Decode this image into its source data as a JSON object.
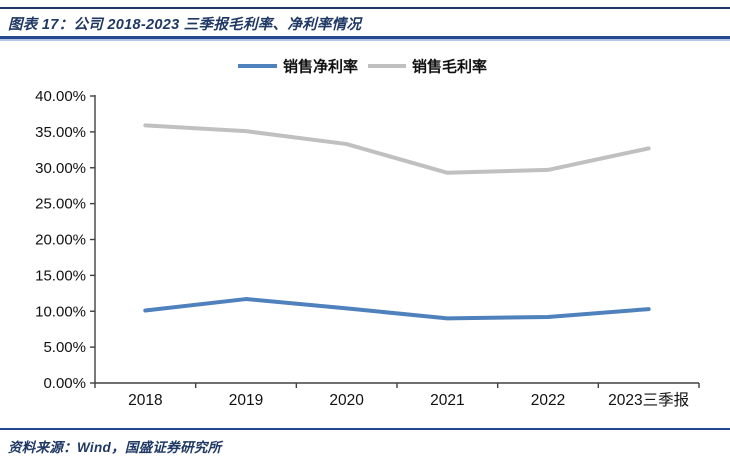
{
  "header": {
    "title": "图表 17：公司 2018-2023 三季报毛利率、净利率情况"
  },
  "footer": {
    "source": "资料来源：Wind，国盛证券研究所"
  },
  "colors": {
    "accent_navy": "#1f3864",
    "rule_navy": "#24478f",
    "rule_light_blue": "#b4c7e7",
    "axis": "#404040",
    "net_margin_blue": "#4f81bd",
    "gross_margin_gray": "#c0c0c0"
  },
  "chart_data": {
    "type": "line",
    "title": "公司 2018-2023 三季报毛利率、净利率情况",
    "categories": [
      "2018",
      "2019",
      "2020",
      "2021",
      "2022",
      "2023三季报"
    ],
    "series": [
      {
        "name": "销售净利率",
        "color": "#4f81bd",
        "values": [
          10.1,
          11.7,
          10.4,
          9.0,
          9.2,
          10.3
        ]
      },
      {
        "name": "销售毛利率",
        "color": "#c0c0c0",
        "values": [
          35.9,
          35.1,
          33.3,
          29.3,
          29.7,
          32.7
        ]
      }
    ],
    "ylim": [
      0,
      40
    ],
    "ytick_step": 5,
    "ytick_labels": [
      "0.00%",
      "5.00%",
      "10.00%",
      "15.00%",
      "20.00%",
      "25.00%",
      "30.00%",
      "35.00%",
      "40.00%"
    ],
    "xlabel": "",
    "ylabel": "",
    "grid": false,
    "legend_position": "top-center"
  }
}
